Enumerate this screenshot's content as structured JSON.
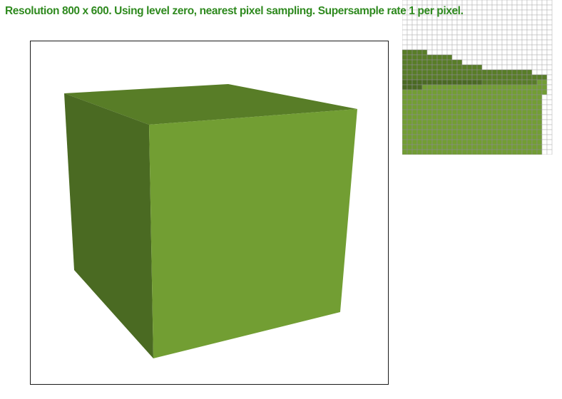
{
  "status_text": "Resolution 800 x 600. Using level zero, nearest pixel sampling. Supersample rate 1 per pixel.",
  "colors": {
    "status_text": "#2f8a1f",
    "background": "#ffffff",
    "viewport_border": "#1a1a1a",
    "cube_top_face": "#587d27",
    "cube_left_face": "#4a6a22",
    "cube_front_face": "#729e33",
    "zoom_grid_line": "#b9b9b9",
    "zoom_pixel_border": "#8a8a8a"
  },
  "zoom_inspector": {
    "cell_size_px": 7,
    "pixel_colors": {
      "empty": "#ffffff",
      "top": "#587d27",
      "left": "#4a6a22",
      "front": "#729e33"
    },
    "pixel_rows": [
      "000000000000000000000000000000",
      "000000000000000000000000000000",
      "000000000000000000000000000000",
      "000000000000000000000000000000",
      "000000000000000000000000000000",
      "000000000000000000000000000000",
      "000000000000000000000000000000",
      "000000000000000000000000000000",
      "000000000000000000000000000000",
      "000000000000000000000000000000",
      "111110000000000000000000000000",
      "111111111100000000000000000000",
      "111111111111000000000000000000",
      "111111111111111100000000000000",
      "111111111111111111111111110000",
      "111111111111111111111111111110",
      "222222222222222211111111111330",
      "222233333333333333333333333330",
      "333333333333333333333333333330",
      "333333333333333333333333333300",
      "333333333333333333333333333300",
      "333333333333333333333333333300",
      "333333333333333333333333333300",
      "333333333333333333333333333300",
      "333333333333333333333333333300",
      "333333333333333333333333333300",
      "333333333333333333333333333300",
      "333333333333333333333333333300",
      "333333333333333333333333333300",
      "333333333333333333333333333300",
      "333333333333333333333333333300"
    ]
  }
}
